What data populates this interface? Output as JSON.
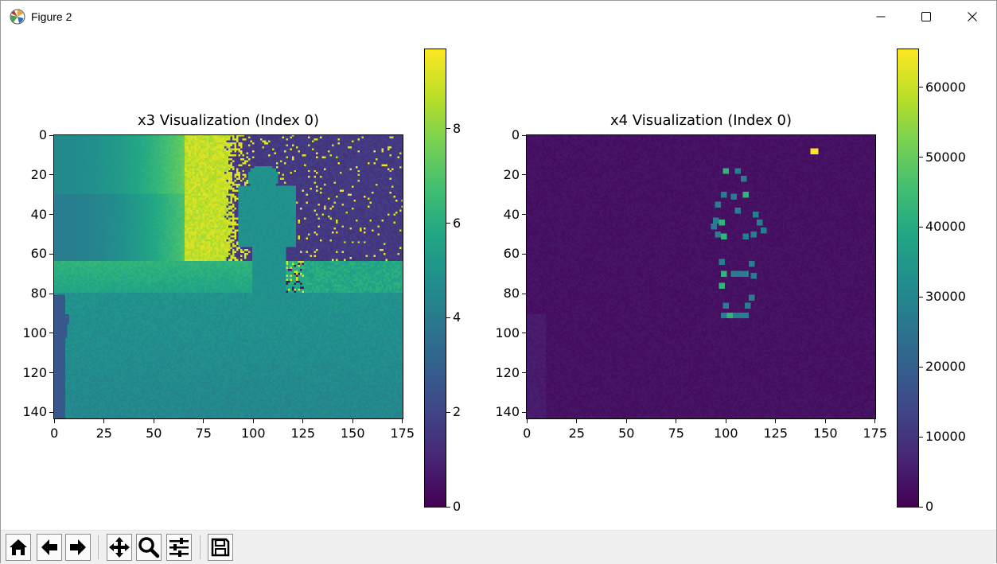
{
  "window": {
    "title": "Figure 2",
    "icons": [
      "matplotlib-logo-icon",
      "minimize-icon",
      "maximize-icon",
      "close-icon"
    ]
  },
  "toolbar": {
    "buttons": [
      {
        "name": "home-button",
        "icon": "home-icon"
      },
      {
        "name": "back-button",
        "icon": "arrow-left-icon"
      },
      {
        "name": "forward-button",
        "icon": "arrow-right-icon"
      },
      {
        "name": "pan-button",
        "icon": "move-icon"
      },
      {
        "name": "zoom-button",
        "icon": "magnifier-icon"
      },
      {
        "name": "configure-subplots-button",
        "icon": "sliders-icon"
      },
      {
        "name": "save-button",
        "icon": "floppy-disk-icon"
      }
    ]
  },
  "chart_data": [
    {
      "type": "heatmap",
      "title": "x3 Visualization (Index 0)",
      "colormap": "viridis",
      "xlim": [
        0,
        176
      ],
      "ylim": [
        143,
        0
      ],
      "xticks": [
        "0",
        "25",
        "50",
        "75",
        "100",
        "125",
        "150",
        "175"
      ],
      "yticks": [
        "0",
        "20",
        "40",
        "60",
        "80",
        "100",
        "120",
        "140"
      ],
      "colorbar": {
        "range": [
          0,
          9.7
        ],
        "ticks": [
          "0",
          "2",
          "4",
          "6",
          "8"
        ]
      },
      "description": "depth-like image: yellow band near x 70-90, dark region upper right, human silhouette near x 100-120"
    },
    {
      "type": "heatmap",
      "title": "x4 Visualization (Index 0)",
      "colormap": "viridis",
      "xlim": [
        0,
        176
      ],
      "ylim": [
        143,
        0
      ],
      "xticks": [
        "0",
        "25",
        "50",
        "75",
        "100",
        "125",
        "150",
        "175"
      ],
      "yticks": [
        "0",
        "20",
        "40",
        "60",
        "80",
        "100",
        "120",
        "140"
      ],
      "colorbar": {
        "range": [
          0,
          65535
        ],
        "ticks": [
          "0",
          "10000",
          "20000",
          "30000",
          "40000",
          "50000",
          "60000"
        ]
      },
      "bright_spot": {
        "x": 144,
        "y": 8,
        "value": 65535
      },
      "keypoints": [
        [
          100,
          18
        ],
        [
          106,
          18
        ],
        [
          109,
          22
        ],
        [
          99,
          30
        ],
        [
          104,
          31
        ],
        [
          110,
          30
        ],
        [
          96,
          35
        ],
        [
          106,
          38
        ],
        [
          115,
          40
        ],
        [
          95,
          43
        ],
        [
          98,
          44
        ],
        [
          117,
          44
        ],
        [
          94,
          46
        ],
        [
          119,
          48
        ],
        [
          96,
          50
        ],
        [
          99,
          51
        ],
        [
          110,
          51
        ],
        [
          114,
          50
        ],
        [
          98,
          64
        ],
        [
          113,
          65
        ],
        [
          99,
          70
        ],
        [
          104,
          70
        ],
        [
          107,
          70
        ],
        [
          110,
          70
        ],
        [
          114,
          71
        ],
        [
          98,
          76
        ],
        [
          113,
          82
        ],
        [
          100,
          86
        ],
        [
          111,
          86
        ],
        [
          99,
          91
        ],
        [
          102,
          91
        ],
        [
          105,
          91
        ],
        [
          108,
          91
        ],
        [
          110,
          91
        ]
      ]
    }
  ]
}
